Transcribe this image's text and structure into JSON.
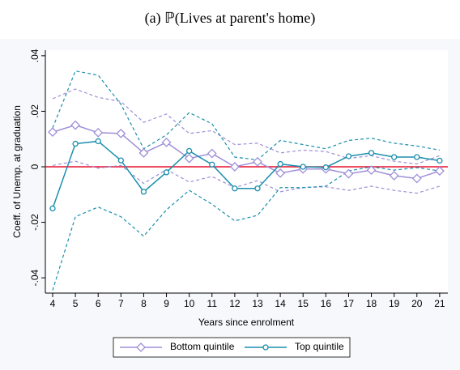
{
  "chart_data": {
    "type": "line",
    "title": "(a) ℙ(Lives at parent's home)",
    "xlabel": "Years since enrolment",
    "ylabel": "Coeff. of Unemp. at graduation",
    "x": [
      4,
      5,
      6,
      7,
      8,
      9,
      10,
      11,
      12,
      13,
      14,
      15,
      16,
      17,
      18,
      19,
      20,
      21
    ],
    "xlim": [
      3.68,
      21.36
    ],
    "xticks": [
      4,
      5,
      6,
      7,
      8,
      9,
      10,
      11,
      12,
      13,
      14,
      15,
      16,
      17,
      18,
      19,
      20,
      21
    ],
    "ylim": [
      -0.0455,
      0.042
    ],
    "yticks": [
      {
        "value": -0.04,
        "label": "-.04"
      },
      {
        "value": -0.02,
        "label": "-.02"
      },
      0,
      {
        "value": 0.02,
        "label": ".02"
      },
      {
        "value": 0.04,
        "label": ".04"
      }
    ],
    "reference_line": {
      "value": 0,
      "color": "#e8112d"
    },
    "legend": "bottom",
    "series": [
      {
        "name": "Bottom quintile",
        "color": "#9f8fd8",
        "marker": "diamond",
        "values": [
          0.0125,
          0.015,
          0.0123,
          0.012,
          0.005,
          0.0088,
          0.003,
          0.0048,
          0.0,
          0.0018,
          -0.0023,
          -0.0008,
          -0.0008,
          -0.0025,
          -0.0012,
          -0.0032,
          -0.0042,
          -0.0015
        ],
        "upper": [
          0.0245,
          0.028,
          0.025,
          0.0235,
          0.016,
          0.019,
          0.012,
          0.013,
          0.008,
          0.0085,
          0.005,
          0.006,
          0.0055,
          0.003,
          0.004,
          0.002,
          0.001,
          0.004
        ],
        "lower": [
          0.0005,
          0.002,
          -0.0005,
          0.0005,
          -0.006,
          -0.001,
          -0.0055,
          -0.0035,
          -0.0075,
          -0.005,
          -0.009,
          -0.0075,
          -0.0072,
          -0.0085,
          -0.007,
          -0.0085,
          -0.0095,
          -0.007
        ]
      },
      {
        "name": "Top quintile",
        "color": "#1b8fad",
        "marker": "circle",
        "values": [
          -0.015,
          0.0083,
          0.0092,
          0.0023,
          -0.009,
          -0.002,
          0.0057,
          0.0008,
          -0.0078,
          -0.0078,
          0.001,
          0.0,
          -0.0002,
          0.0038,
          0.005,
          0.0035,
          0.0035,
          0.0022
        ],
        "upper": [
          0.014,
          0.0345,
          0.033,
          0.0225,
          0.0065,
          0.0115,
          0.0195,
          0.0155,
          0.0035,
          0.0025,
          0.0095,
          0.008,
          0.0065,
          0.0095,
          0.0103,
          0.0085,
          0.0075,
          0.006
        ],
        "lower": [
          -0.0445,
          -0.018,
          -0.0145,
          -0.018,
          -0.025,
          -0.0155,
          -0.0085,
          -0.0135,
          -0.0195,
          -0.0175,
          -0.0075,
          -0.0075,
          -0.007,
          -0.0015,
          0.0,
          -0.0012,
          -0.0003,
          -0.0015
        ]
      }
    ]
  }
}
